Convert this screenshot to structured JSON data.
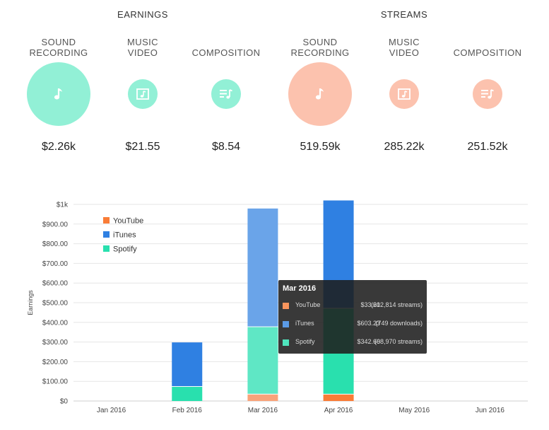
{
  "earnings": {
    "title": "EARNINGS",
    "items": [
      {
        "label_line1": "SOUND",
        "label_line2": "RECORDING",
        "value": "$2.26k",
        "icon": "music-note-icon",
        "color": "#92f0d6"
      },
      {
        "label_line1": "MUSIC",
        "label_line2": "VIDEO",
        "value": "$21.55",
        "icon": "music-video-icon",
        "color": "#92f0d6"
      },
      {
        "label_line1": "COMPOSITION",
        "label_line2": "",
        "value": "$8.54",
        "icon": "composition-icon",
        "color": "#92f0d6"
      }
    ]
  },
  "streams": {
    "title": "STREAMS",
    "items": [
      {
        "label_line1": "SOUND",
        "label_line2": "RECORDING",
        "value": "519.59k",
        "icon": "music-note-icon",
        "color": "#fcc2ae"
      },
      {
        "label_line1": "MUSIC",
        "label_line2": "VIDEO",
        "value": "285.22k",
        "icon": "music-video-icon",
        "color": "#fcc2ae"
      },
      {
        "label_line1": "COMPOSITION",
        "label_line2": "",
        "value": "251.52k",
        "icon": "composition-icon",
        "color": "#fcc2ae"
      }
    ]
  },
  "chart_data": {
    "type": "bar",
    "stacked": true,
    "ylabel": "Earnings",
    "xlabel": "",
    "ylim": [
      0,
      1000
    ],
    "y_ticks": [
      0,
      100,
      200,
      300,
      400,
      500,
      600,
      700,
      800,
      900,
      1000
    ],
    "y_tick_labels": [
      "$0",
      "$100.00",
      "$200.00",
      "$300.00",
      "$400.00",
      "$500.00",
      "$600.00",
      "$700.00",
      "$800.00",
      "$900.00",
      "$1k"
    ],
    "categories": [
      "Jan 2016",
      "Feb 2016",
      "Mar 2016",
      "Apr 2016",
      "May 2016",
      "Jun 2016"
    ],
    "series": [
      {
        "name": "YouTube",
        "color": "#f97c37",
        "highlight_color": "#f9a37a",
        "values": [
          0,
          0,
          33.21,
          33,
          0,
          0
        ]
      },
      {
        "name": "Spotify",
        "color": "#29e0ae",
        "highlight_color": "#5fe7c5",
        "values": [
          0,
          72,
          342.6,
          437,
          0,
          0
        ]
      },
      {
        "name": "iTunes",
        "color": "#2f80e2",
        "highlight_color": "#6aa4e9",
        "values": [
          0,
          226,
          603.23,
          550,
          0,
          0
        ]
      }
    ],
    "legend_order": [
      "YouTube",
      "iTunes",
      "Spotify"
    ],
    "highlighted_category": "Mar 2016",
    "legend_position": "top-left",
    "grid": true
  },
  "tooltip": {
    "title": "Mar 2016",
    "rows": [
      {
        "name": "YouTube",
        "amount": "$33.21",
        "detail": "(602,814 streams)",
        "color": "#f9955d"
      },
      {
        "name": "iTunes",
        "amount": "$603.23",
        "detail": "(749 downloads)",
        "color": "#5b9be6"
      },
      {
        "name": "Spotify",
        "amount": "$342.60",
        "detail": "(68,970 streams)",
        "color": "#4fe5bd"
      }
    ]
  }
}
